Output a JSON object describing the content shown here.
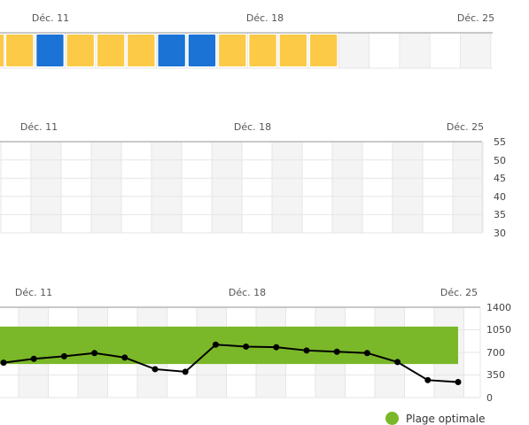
{
  "colors": {
    "blue": "#1a73d5",
    "yellow": "#fcca47",
    "weekend": "#f4f4f4",
    "grid": "#e6e6e6",
    "axis": "#b7b7b7",
    "green": "#7ab829",
    "line": "#000000"
  },
  "tracker": {
    "date_labels": [
      "Déc. 11",
      "Déc. 18",
      "Déc. 25"
    ],
    "days": [
      "yellow",
      "blue",
      "yellow",
      "yellow",
      "yellow",
      "blue",
      "blue",
      "yellow",
      "yellow",
      "yellow",
      "yellow",
      "empty",
      "empty",
      "empty",
      "empty",
      "empty"
    ]
  },
  "chart_middle": {
    "date_labels": [
      "Déc. 11",
      "Déc. 18",
      "Déc. 25"
    ],
    "y_ticks": [
      "55",
      "50",
      "45",
      "40",
      "35",
      "30"
    ]
  },
  "chart_bottom": {
    "date_labels": [
      "Déc. 11",
      "Déc. 18",
      "Déc. 25"
    ],
    "y_ticks": [
      "1400",
      "1050",
      "700",
      "350",
      "0"
    ]
  },
  "chart_data": [
    {
      "type": "line",
      "x": [
        "Déc. 11",
        "Déc. 18",
        "Déc. 25"
      ],
      "ylim": [
        30,
        55
      ],
      "y_ticks": [
        55,
        50,
        45,
        40,
        35,
        30
      ],
      "series": []
    },
    {
      "type": "line",
      "ylim": [
        0,
        1400
      ],
      "y_ticks": [
        1400,
        1050,
        700,
        350,
        0
      ],
      "optimal_range": [
        520,
        1100
      ],
      "series": [
        {
          "values": [
            540,
            600,
            640,
            690,
            620,
            440,
            400,
            820,
            790,
            780,
            730,
            710,
            690,
            550,
            270,
            240
          ]
        }
      ]
    }
  ],
  "legend": {
    "label": "Plage optimale"
  }
}
